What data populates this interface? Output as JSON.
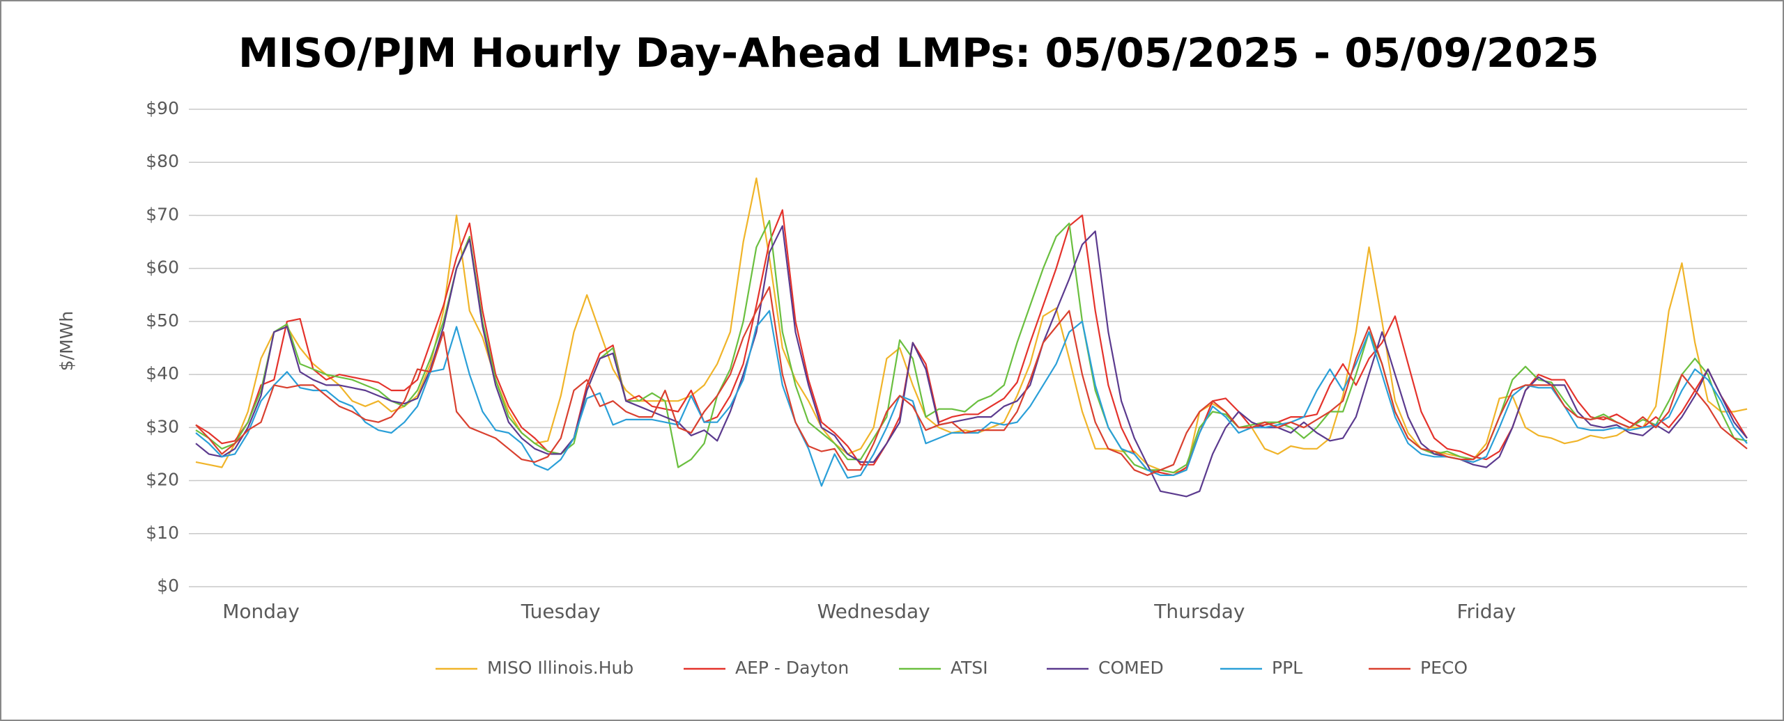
{
  "chart_data": {
    "type": "line",
    "title": "MISO/PJM Hourly Day-Ahead LMPs: 05/05/2025 - 05/09/2025",
    "ylabel": "$/MWh",
    "categories": [
      null,
      null,
      null,
      null,
      null,
      "Monday",
      null,
      null,
      null,
      null,
      null,
      null,
      null,
      null,
      null,
      null,
      null,
      null,
      null,
      null,
      null,
      null,
      null,
      null,
      null,
      null,
      null,
      null,
      "Tuesday",
      null,
      null,
      null,
      null,
      null,
      null,
      null,
      null,
      null,
      null,
      null,
      null,
      null,
      null,
      null,
      null,
      null,
      null,
      null,
      null,
      null,
      null,
      null,
      "Wednesday",
      null,
      null,
      null,
      null,
      null,
      null,
      null,
      null,
      null,
      null,
      null,
      null,
      null,
      null,
      null,
      null,
      null,
      null,
      null,
      null,
      null,
      null,
      null,
      null,
      "Thursday",
      null,
      null,
      null,
      null,
      null,
      null,
      null,
      null,
      null,
      null,
      null,
      null,
      null,
      null,
      null,
      null,
      null,
      null,
      null,
      null,
      null,
      "Friday",
      null,
      null,
      null,
      null,
      null,
      null,
      null,
      null,
      null,
      null,
      null,
      null,
      null,
      null,
      null,
      null,
      null,
      null,
      null,
      null
    ],
    "ylim": [
      0,
      90
    ],
    "yticks": [
      {
        "value": 0,
        "label": "$0"
      },
      {
        "value": 10,
        "label": "$10"
      },
      {
        "value": 20,
        "label": "$20"
      },
      {
        "value": 30,
        "label": "$30"
      },
      {
        "value": 40,
        "label": "$40"
      },
      {
        "value": 50,
        "label": "$50"
      },
      {
        "value": 60,
        "label": "$60"
      },
      {
        "value": 70,
        "label": "$70"
      },
      {
        "value": 80,
        "label": "$80"
      },
      {
        "value": 90,
        "label": "$90"
      }
    ],
    "grid": true,
    "legend": "bottom",
    "series": [
      {
        "name": "MISO Illinois.Hub",
        "color": "#f0b429",
        "values": [
          23.5,
          23,
          22.5,
          27,
          33,
          43,
          48,
          49,
          45,
          42,
          40,
          38,
          35,
          34,
          35,
          33,
          34,
          36,
          42,
          52,
          70,
          52,
          47,
          39,
          33,
          29,
          27,
          27.5,
          36,
          48,
          55,
          48,
          41,
          37,
          35,
          35,
          35,
          35,
          36,
          38,
          42,
          48,
          65,
          77,
          62,
          45,
          39,
          35,
          30,
          27,
          25,
          26,
          30,
          43,
          45,
          38,
          32,
          30,
          29,
          29.5,
          29,
          30,
          31,
          36,
          42,
          51,
          52.5,
          43,
          33,
          26,
          26,
          25.5,
          25.5,
          23,
          22,
          21.5,
          22,
          33,
          34.5,
          33,
          30,
          30,
          26,
          25,
          26.5,
          26,
          26,
          28,
          36,
          48,
          64,
          50,
          35,
          29,
          26,
          25.5,
          25,
          24.5,
          24,
          27,
          35.5,
          36,
          30,
          28.5,
          28,
          27,
          27.5,
          28.5,
          28,
          28.5,
          30,
          30,
          34,
          52,
          61,
          46,
          35,
          33,
          33,
          33.5
        ]
      },
      {
        "name": "AEP - Dayton",
        "color": "#e4322b",
        "values": [
          30.5,
          29,
          27,
          27.5,
          31,
          38,
          39,
          50,
          50.5,
          41,
          39,
          40,
          39.5,
          39,
          38.5,
          37,
          37,
          39,
          46,
          53,
          62,
          68.5,
          52,
          40,
          34,
          30,
          28,
          25.5,
          25,
          28,
          38,
          44,
          45.5,
          35,
          36,
          34,
          33.5,
          33,
          37,
          31,
          32,
          36,
          42,
          53,
          65,
          71,
          50,
          39,
          31,
          29,
          26.5,
          23,
          23,
          27,
          32,
          46,
          42,
          31,
          32,
          32.5,
          32.5,
          34,
          35.5,
          38.5,
          46,
          53,
          60,
          68,
          70,
          52,
          38,
          30,
          25,
          22,
          21.5,
          21,
          22.5,
          29,
          35,
          35.5,
          33,
          30,
          30.5,
          31,
          32,
          32,
          32.5,
          38,
          42,
          38,
          43,
          46,
          51,
          42,
          33,
          28,
          26,
          25.5,
          24.5,
          24,
          25.5,
          30,
          37,
          40,
          39,
          39,
          35,
          32,
          31.5,
          32.5,
          31,
          30,
          32,
          30,
          33,
          37,
          41,
          36,
          32,
          28
        ]
      },
      {
        "name": "ATSI",
        "color": "#6abf3f",
        "values": [
          29.5,
          28,
          26,
          27,
          31,
          37,
          48,
          49.5,
          42,
          41,
          40,
          39.5,
          39,
          38,
          37,
          35,
          34,
          37,
          43,
          50,
          60,
          66,
          50,
          39,
          32,
          29,
          27,
          25.5,
          25,
          27,
          37,
          43,
          45,
          35,
          35,
          36.5,
          35,
          22.5,
          24,
          27,
          36,
          41,
          50,
          64,
          69,
          48,
          38,
          31,
          29,
          27,
          24,
          24,
          28,
          32,
          46.5,
          43,
          32,
          33.5,
          33.5,
          33,
          35,
          36,
          38,
          46,
          53,
          60,
          66,
          68.5,
          50,
          37,
          30,
          26,
          23,
          22,
          22,
          21.5,
          23,
          30,
          33,
          32.5,
          30,
          30.5,
          31,
          31,
          30,
          28,
          30,
          33,
          33,
          40,
          48,
          42,
          33,
          28,
          26,
          25,
          25.5,
          24.5,
          24,
          26,
          32,
          39,
          41.5,
          39,
          38.5,
          35,
          32,
          31.5,
          32.5,
          31,
          30,
          31.5,
          30.5,
          35,
          40,
          43,
          40,
          33,
          28,
          27.5
        ]
      },
      {
        "name": "COMED",
        "color": "#5b3a8e",
        "values": [
          27,
          25,
          24.5,
          26,
          30,
          36,
          48,
          49,
          40.5,
          39,
          38,
          38,
          37.5,
          37,
          36,
          35,
          34.5,
          35.5,
          41,
          49,
          60,
          65.5,
          49,
          38,
          31,
          28,
          26,
          25,
          25,
          28,
          37,
          43,
          44,
          35,
          34,
          33,
          32,
          31,
          28.5,
          29.5,
          27.5,
          33,
          40,
          48,
          63,
          68,
          48,
          38,
          30,
          28.5,
          25,
          23.5,
          23.5,
          27,
          31,
          46,
          41,
          30.5,
          31,
          31.5,
          32,
          32,
          34,
          35,
          38,
          46,
          52,
          58,
          64.5,
          67,
          48,
          35,
          28,
          23,
          18,
          17.5,
          17,
          18,
          25,
          30,
          33,
          31,
          30,
          30,
          29,
          31,
          29,
          27.5,
          28,
          32,
          40,
          48,
          40,
          32,
          27,
          25,
          24.5,
          24,
          23,
          22.5,
          24.5,
          30,
          37,
          39.5,
          38,
          38,
          33,
          30.5,
          30,
          30.5,
          29,
          28.5,
          30.5,
          29,
          32,
          36,
          41,
          36,
          31,
          28
        ]
      },
      {
        "name": "PPL",
        "color": "#2a9fd8",
        "values": [
          29,
          27,
          24.5,
          25,
          29,
          35,
          38,
          40.5,
          37.5,
          37,
          37,
          35,
          34,
          31,
          29.5,
          29,
          31,
          34,
          40.5,
          41,
          49,
          40,
          33,
          29.5,
          29,
          27,
          23,
          22,
          24,
          28,
          35.5,
          36.5,
          30.5,
          31.5,
          31.5,
          31.5,
          31,
          30.5,
          36,
          31,
          31,
          34,
          39,
          49,
          52,
          38,
          31,
          26,
          19,
          25,
          20.5,
          21,
          25,
          30,
          36,
          35,
          27,
          28,
          29,
          29,
          29,
          31,
          30.5,
          31,
          34,
          38,
          42,
          48,
          50,
          38,
          30,
          26,
          25,
          22,
          21,
          21,
          22,
          29,
          34,
          32,
          29,
          30,
          30,
          30.5,
          31,
          32,
          37,
          41,
          37,
          42,
          48,
          40,
          32,
          27,
          25,
          24.5,
          24.5,
          24,
          23.5,
          24.5,
          30,
          36,
          38,
          37.5,
          37.5,
          34,
          30,
          29.5,
          29.5,
          30,
          29.5,
          30,
          30.5,
          32,
          37,
          41,
          39,
          35,
          30,
          27
        ]
      },
      {
        "name": "PECO",
        "color": "#d9402f",
        "values": [
          30.5,
          28,
          25,
          27,
          29.5,
          31,
          38,
          37.5,
          38,
          38,
          36,
          34,
          33,
          31.5,
          31,
          32,
          35,
          41,
          40.5,
          48,
          33,
          30,
          29,
          28,
          26,
          24,
          23.5,
          24.5,
          28,
          37,
          39,
          34,
          35,
          33,
          32,
          32,
          37,
          30,
          29,
          33,
          36,
          40,
          47,
          52,
          56.5,
          40,
          31,
          26.5,
          25.5,
          26,
          22,
          22,
          27,
          33,
          36,
          34,
          29.5,
          30.5,
          31,
          29,
          29.5,
          29.5,
          29.5,
          33,
          39,
          46,
          49,
          52,
          40,
          31,
          26,
          25,
          22,
          21,
          22,
          23,
          29,
          33,
          35,
          33,
          30,
          30,
          31,
          30,
          31,
          30,
          31.5,
          33,
          35,
          43,
          49,
          42,
          33,
          28,
          26,
          25.5,
          24.5,
          24,
          24,
          26,
          32,
          37,
          38,
          38,
          38,
          34,
          32,
          31.5,
          32,
          31,
          30,
          32,
          30,
          33,
          40,
          37,
          34,
          30,
          28,
          26
        ]
      }
    ]
  }
}
